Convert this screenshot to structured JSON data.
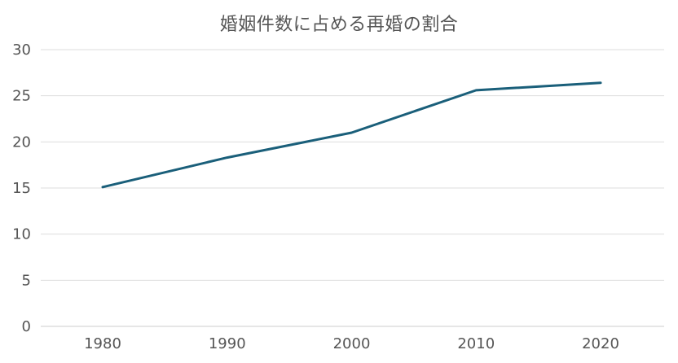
{
  "chart_data": {
    "type": "line",
    "title": "婚姻件数に占める再婚の割合",
    "xlabel": "",
    "ylabel": "",
    "categories": [
      "1980",
      "1990",
      "2000",
      "2010",
      "2020"
    ],
    "series": [
      {
        "values": [
          15.1,
          18.3,
          21.0,
          25.6,
          26.4
        ],
        "color": "#1a5f7a"
      }
    ],
    "ylim": [
      0,
      30
    ],
    "yticks": [
      0,
      5,
      10,
      15,
      20,
      25,
      30
    ],
    "grid": true,
    "legend": "none"
  }
}
